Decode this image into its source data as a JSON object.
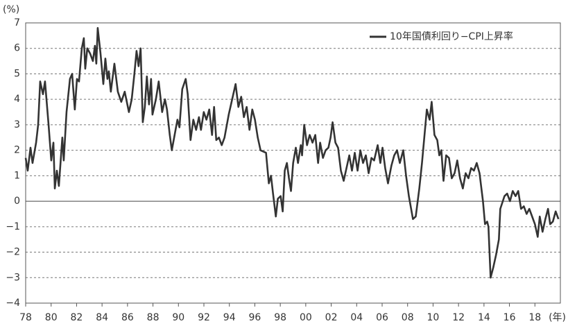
{
  "chart_data": {
    "type": "line",
    "y_unit": "(%)",
    "x_unit": "(年)",
    "grid": true,
    "legend_position": "top-right",
    "xlim": [
      1978,
      2020
    ],
    "ylim": [
      -4,
      7
    ],
    "xticks": [
      {
        "value": 1978,
        "label": "78"
      },
      {
        "value": 1980,
        "label": "80"
      },
      {
        "value": 1982,
        "label": "82"
      },
      {
        "value": 1984,
        "label": "84"
      },
      {
        "value": 1986,
        "label": "86"
      },
      {
        "value": 1988,
        "label": "88"
      },
      {
        "value": 1990,
        "label": "90"
      },
      {
        "value": 1992,
        "label": "92"
      },
      {
        "value": 1994,
        "label": "94"
      },
      {
        "value": 1996,
        "label": "96"
      },
      {
        "value": 1998,
        "label": "98"
      },
      {
        "value": 2000,
        "label": "00"
      },
      {
        "value": 2002,
        "label": "02"
      },
      {
        "value": 2004,
        "label": "04"
      },
      {
        "value": 2006,
        "label": "06"
      },
      {
        "value": 2008,
        "label": "08"
      },
      {
        "value": 2010,
        "label": "10"
      },
      {
        "value": 2012,
        "label": "12"
      },
      {
        "value": 2014,
        "label": "14"
      },
      {
        "value": 2016,
        "label": "16"
      },
      {
        "value": 2018,
        "label": "18"
      }
    ],
    "yticks": [
      {
        "value": -4,
        "label": "−4"
      },
      {
        "value": -3,
        "label": "−3"
      },
      {
        "value": -2,
        "label": "−2"
      },
      {
        "value": -1,
        "label": "−1"
      },
      0,
      1,
      2,
      3,
      4,
      5,
      6,
      7
    ],
    "x": [
      1978.0,
      1978.16,
      1978.38,
      1978.54,
      1978.82,
      1978.98,
      1979.14,
      1979.36,
      1979.52,
      1979.8,
      1980.01,
      1980.18,
      1980.29,
      1980.45,
      1980.61,
      1980.88,
      1980.99,
      1981.21,
      1981.48,
      1981.65,
      1981.86,
      1982.03,
      1982.19,
      1982.41,
      1982.57,
      1982.68,
      1982.84,
      1983.06,
      1983.28,
      1983.44,
      1983.55,
      1983.66,
      1983.88,
      1984.1,
      1984.26,
      1984.42,
      1984.53,
      1984.69,
      1984.97,
      1985.24,
      1985.51,
      1985.78,
      1986.11,
      1986.33,
      1986.54,
      1986.71,
      1986.87,
      1987.03,
      1987.2,
      1987.36,
      1987.52,
      1987.69,
      1987.85,
      1987.96,
      1988.23,
      1988.45,
      1988.72,
      1988.94,
      1989.1,
      1989.32,
      1989.48,
      1989.7,
      1989.92,
      1990.08,
      1990.3,
      1990.57,
      1990.73,
      1990.95,
      1991.17,
      1991.39,
      1991.61,
      1991.77,
      1991.99,
      1992.2,
      1992.42,
      1992.64,
      1992.8,
      1992.97,
      1993.18,
      1993.4,
      1993.62,
      1993.95,
      1994.49,
      1994.71,
      1994.93,
      1995.14,
      1995.36,
      1995.58,
      1995.8,
      1996.01,
      1996.23,
      1996.45,
      1996.88,
      1997.1,
      1997.27,
      1997.43,
      1997.65,
      1997.81,
      1998.03,
      1998.19,
      1998.35,
      1998.52,
      1998.68,
      1998.84,
      1999.01,
      1999.22,
      1999.39,
      1999.61,
      1999.71,
      1999.88,
      2000.1,
      2000.31,
      2000.53,
      2000.75,
      2000.97,
      2001.13,
      2001.35,
      2001.56,
      2001.78,
      2001.95,
      2002.11,
      2002.33,
      2002.54,
      2002.76,
      2002.98,
      2003.2,
      2003.42,
      2003.63,
      2003.85,
      2004.07,
      2004.29,
      2004.5,
      2004.72,
      2004.94,
      2005.16,
      2005.37,
      2005.65,
      2005.86,
      2006.03,
      2006.24,
      2006.46,
      2006.73,
      2006.95,
      2007.17,
      2007.39,
      2007.66,
      2007.88,
      2008.1,
      2008.42,
      2008.64,
      2008.92,
      2009.13,
      2009.51,
      2009.73,
      2009.89,
      2010.11,
      2010.33,
      2010.49,
      2010.65,
      2010.82,
      2011.03,
      2011.25,
      2011.47,
      2011.69,
      2011.9,
      2012.12,
      2012.34,
      2012.56,
      2012.78,
      2012.99,
      2013.21,
      2013.43,
      2013.65,
      2013.92,
      2014.08,
      2014.25,
      2014.35,
      2014.52,
      2014.73,
      2014.95,
      2015.17,
      2015.28,
      2015.61,
      2015.82,
      2016.04,
      2016.26,
      2016.48,
      2016.69,
      2016.91,
      2017.13,
      2017.35,
      2017.56,
      2017.78,
      2018.0,
      2018.22,
      2018.38,
      2018.6,
      2018.82,
      2019.03,
      2019.2,
      2019.41,
      2019.63,
      2019.85
    ],
    "series": [
      {
        "name": "10年国債利回り−CPI上昇率",
        "color": "#333333",
        "values": [
          1.7,
          1.2,
          2.1,
          1.5,
          2.3,
          3.0,
          4.7,
          4.2,
          4.7,
          3.0,
          1.6,
          2.3,
          0.5,
          1.2,
          0.6,
          2.5,
          1.6,
          3.5,
          4.8,
          5.0,
          3.6,
          4.8,
          4.7,
          6.0,
          6.4,
          5.2,
          6.0,
          5.8,
          5.5,
          6.1,
          5.4,
          6.8,
          5.8,
          4.6,
          5.6,
          4.8,
          5.1,
          4.3,
          5.4,
          4.3,
          3.9,
          4.3,
          3.5,
          4.0,
          5.0,
          5.9,
          5.3,
          6.0,
          3.1,
          3.7,
          4.9,
          3.8,
          4.8,
          3.4,
          4.0,
          4.7,
          3.5,
          4.0,
          3.6,
          2.6,
          2.0,
          2.6,
          3.2,
          2.9,
          4.4,
          4.8,
          4.2,
          2.4,
          3.2,
          2.8,
          3.3,
          2.8,
          3.5,
          3.2,
          3.6,
          2.6,
          3.7,
          2.4,
          2.5,
          2.2,
          2.5,
          3.4,
          4.6,
          3.7,
          4.1,
          3.3,
          3.7,
          2.8,
          3.6,
          3.2,
          2.5,
          2.0,
          1.9,
          0.7,
          1.0,
          0.3,
          -0.6,
          0.1,
          0.2,
          -0.4,
          1.2,
          1.5,
          0.9,
          0.4,
          1.5,
          2.1,
          1.5,
          2.2,
          1.8,
          3.0,
          2.2,
          2.6,
          2.3,
          2.6,
          1.5,
          2.3,
          1.7,
          2.0,
          2.1,
          2.5,
          3.1,
          2.3,
          2.1,
          1.2,
          0.8,
          1.3,
          1.8,
          1.2,
          1.9,
          1.2,
          2.0,
          1.5,
          1.8,
          1.1,
          1.7,
          1.6,
          2.2,
          1.5,
          2.1,
          1.3,
          0.7,
          1.4,
          1.8,
          2.0,
          1.5,
          2.0,
          1.0,
          0.2,
          -0.7,
          -0.6,
          0.5,
          1.5,
          3.6,
          3.2,
          3.9,
          2.6,
          2.4,
          1.8,
          2.0,
          0.8,
          1.8,
          1.7,
          0.9,
          1.1,
          1.6,
          0.9,
          0.5,
          1.1,
          0.9,
          1.3,
          1.2,
          1.5,
          1.1,
          0.0,
          -0.9,
          -0.8,
          -1.0,
          -3.0,
          -2.6,
          -2.1,
          -1.5,
          -0.3,
          0.2,
          0.3,
          0.0,
          0.4,
          0.2,
          0.4,
          -0.3,
          -0.2,
          -0.5,
          -0.3,
          -0.6,
          -0.9,
          -1.4,
          -0.6,
          -1.2,
          -0.7,
          -0.3,
          -0.9,
          -0.8,
          -0.4,
          -0.7
        ]
      }
    ]
  }
}
